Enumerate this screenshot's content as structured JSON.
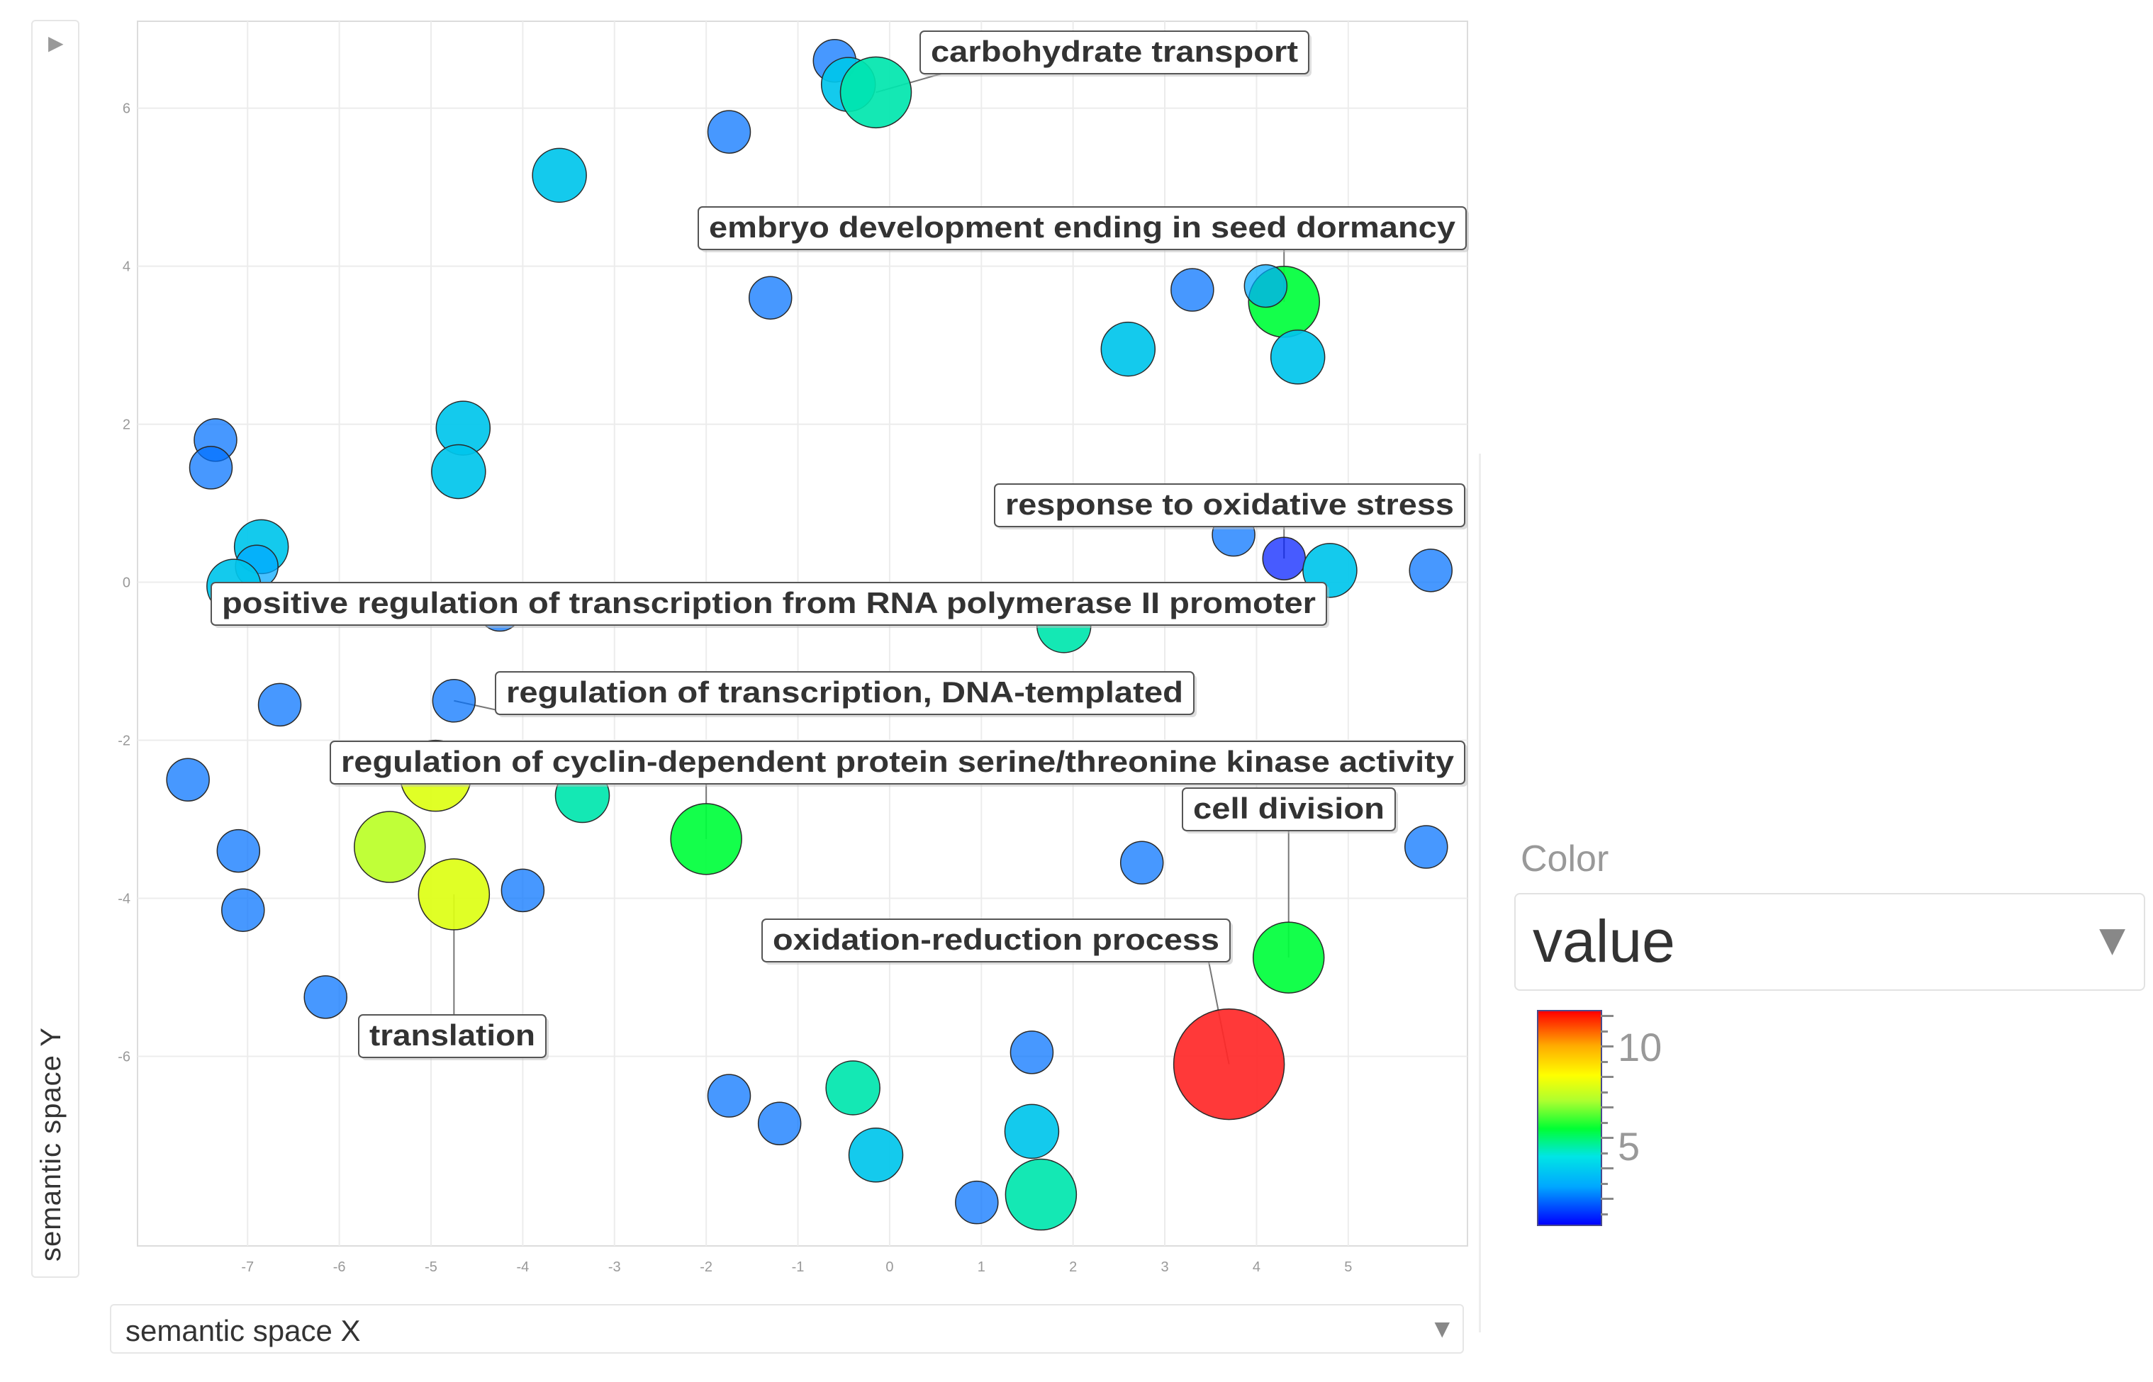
{
  "ui": {
    "left_toggle_icon": "expand-arrow-icon",
    "y_axis_label": "semantic space Y",
    "x_axis_select": "semantic space X",
    "color_title": "Color",
    "color_select": "value",
    "colorbar_labels": [
      "10",
      "5"
    ]
  },
  "chart_data": {
    "type": "scatter",
    "title": "",
    "xlabel": "semantic space X",
    "ylabel": "semantic space Y",
    "xlim": [
      -8.2,
      6.3
    ],
    "ylim": [
      -8.4,
      7.1
    ],
    "xticks": [
      -7,
      -6,
      -5,
      -4,
      -3,
      -2,
      -1,
      0,
      1,
      2,
      3,
      4,
      5
    ],
    "yticks": [
      6,
      4,
      2,
      0,
      -2,
      -4,
      -6
    ],
    "grid": true,
    "color_by": "value",
    "color_range": [
      1,
      11
    ],
    "size_by": "value",
    "points": [
      {
        "x": -0.6,
        "y": 6.6,
        "value": 1.8,
        "size": 1
      },
      {
        "x": -0.45,
        "y": 6.3,
        "value": 3,
        "size": 2
      },
      {
        "x": -0.15,
        "y": 6.2,
        "value": 4,
        "size": 3,
        "label": "carbohydrate transport"
      },
      {
        "x": -1.75,
        "y": 5.7,
        "value": 1.8,
        "size": 1
      },
      {
        "x": -3.6,
        "y": 5.15,
        "value": 3,
        "size": 2
      },
      {
        "x": -1.3,
        "y": 3.6,
        "value": 1.8,
        "size": 1
      },
      {
        "x": 3.3,
        "y": 3.7,
        "value": 1.8,
        "size": 1
      },
      {
        "x": 4.3,
        "y": 3.55,
        "value": 5,
        "size": 3,
        "label": "embryo development ending in seed dormancy"
      },
      {
        "x": 4.1,
        "y": 3.75,
        "value": 2.2,
        "size": 1
      },
      {
        "x": 2.6,
        "y": 2.95,
        "value": 3,
        "size": 2
      },
      {
        "x": 4.45,
        "y": 2.85,
        "value": 3,
        "size": 2
      },
      {
        "x": -7.35,
        "y": 1.8,
        "value": 1.8,
        "size": 1
      },
      {
        "x": -7.4,
        "y": 1.45,
        "value": 1.8,
        "size": 1
      },
      {
        "x": -4.65,
        "y": 1.95,
        "value": 3,
        "size": 2
      },
      {
        "x": -4.7,
        "y": 1.4,
        "value": 3,
        "size": 2
      },
      {
        "x": -6.85,
        "y": 0.45,
        "value": 3,
        "size": 2
      },
      {
        "x": -6.9,
        "y": 0.2,
        "value": 2.2,
        "size": 1
      },
      {
        "x": -7.15,
        "y": -0.05,
        "value": 3,
        "size": 2
      },
      {
        "x": 3.75,
        "y": 0.6,
        "value": 1.8,
        "size": 1
      },
      {
        "x": 4.3,
        "y": 0.3,
        "value": 1.2,
        "size": 1,
        "label": "response to oxidative stress"
      },
      {
        "x": 4.8,
        "y": 0.15,
        "value": 3,
        "size": 2
      },
      {
        "x": 5.9,
        "y": 0.15,
        "value": 1.8,
        "size": 1
      },
      {
        "x": -4.25,
        "y": -0.35,
        "value": 1.8,
        "size": 1,
        "label": "positive regulation of transcription from RNA polymerase II promoter"
      },
      {
        "x": 1.9,
        "y": -0.55,
        "value": 4,
        "size": 2
      },
      {
        "x": -6.65,
        "y": -1.55,
        "value": 1.8,
        "size": 1
      },
      {
        "x": -4.75,
        "y": -1.5,
        "value": 1.8,
        "size": 1,
        "label": "regulation of transcription, DNA-templated"
      },
      {
        "x": -7.65,
        "y": -2.5,
        "value": 1.8,
        "size": 1
      },
      {
        "x": -4.95,
        "y": -2.45,
        "value": 7,
        "size": 3
      },
      {
        "x": -3.35,
        "y": -2.7,
        "value": 4,
        "size": 2
      },
      {
        "x": -2.0,
        "y": -3.25,
        "value": 5,
        "size": 3,
        "label": "regulation of cyclin-dependent protein serine/threonine kinase activity"
      },
      {
        "x": -7.1,
        "y": -3.4,
        "value": 1.8,
        "size": 1
      },
      {
        "x": -5.45,
        "y": -3.35,
        "value": 6.5,
        "size": 3
      },
      {
        "x": -4.75,
        "y": -3.95,
        "value": 7,
        "size": 3,
        "label": "translation"
      },
      {
        "x": -4.0,
        "y": -3.9,
        "value": 1.8,
        "size": 1
      },
      {
        "x": -7.05,
        "y": -4.15,
        "value": 1.8,
        "size": 1
      },
      {
        "x": 2.75,
        "y": -3.55,
        "value": 1.8,
        "size": 1
      },
      {
        "x": 5.85,
        "y": -3.35,
        "value": 1.8,
        "size": 1
      },
      {
        "x": 4.35,
        "y": -4.75,
        "value": 5,
        "size": 3,
        "label": "cell division"
      },
      {
        "x": -6.15,
        "y": -5.25,
        "value": 1.8,
        "size": 1
      },
      {
        "x": 3.7,
        "y": -6.1,
        "value": 10.5,
        "size": 4,
        "label": "oxidation-reduction process"
      },
      {
        "x": 1.55,
        "y": -5.95,
        "value": 1.8,
        "size": 1
      },
      {
        "x": -1.75,
        "y": -6.5,
        "value": 1.8,
        "size": 1
      },
      {
        "x": -0.4,
        "y": -6.4,
        "value": 4,
        "size": 2
      },
      {
        "x": -1.2,
        "y": -6.85,
        "value": 1.8,
        "size": 1
      },
      {
        "x": 1.55,
        "y": -6.95,
        "value": 3,
        "size": 2
      },
      {
        "x": -0.15,
        "y": -7.25,
        "value": 3,
        "size": 2
      },
      {
        "x": 1.65,
        "y": -7.75,
        "value": 4,
        "size": 3
      },
      {
        "x": 0.95,
        "y": -7.85,
        "value": 1.8,
        "size": 1
      }
    ]
  }
}
